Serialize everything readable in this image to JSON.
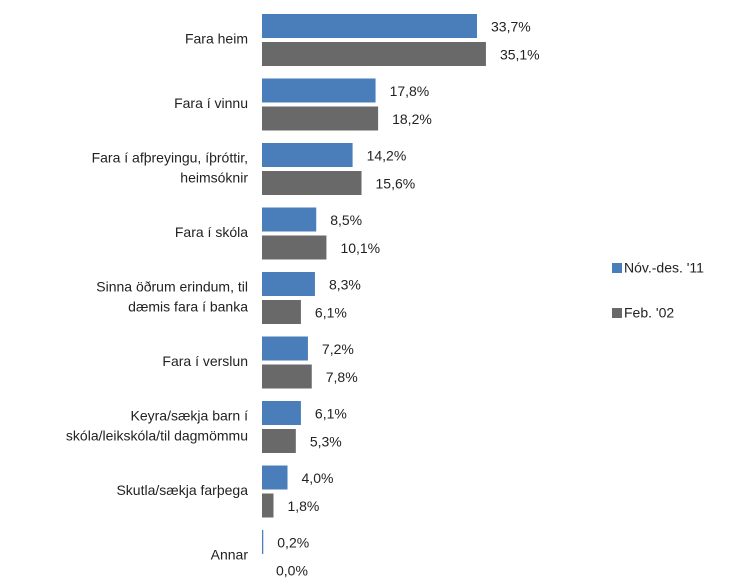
{
  "chart_data": {
    "type": "bar",
    "orientation": "horizontal",
    "categories": [
      [
        "Fara heim"
      ],
      [
        "Fara í vinnu"
      ],
      [
        "Fara í afþreyingu, íþróttir,",
        "heimsóknir"
      ],
      [
        "Fara í skóla"
      ],
      [
        "Sinna öðrum erindum, til",
        "dæmis fara í banka"
      ],
      [
        "Fara í verslun"
      ],
      [
        "Keyra/sækja barn í",
        "skóla/leikskóla/til dagmömmu"
      ],
      [
        "Skutla/sækja farþega"
      ],
      [
        "Annar"
      ]
    ],
    "series": [
      {
        "name": "Nóv.-des. '11",
        "color": "#4a7ebb",
        "values": [
          33.7,
          17.8,
          14.2,
          8.5,
          8.3,
          7.2,
          6.1,
          4.0,
          0.2
        ],
        "value_labels": [
          "33,7%",
          "17,8%",
          "14,2%",
          "8,5%",
          "8,3%",
          "7,2%",
          "6,1%",
          "4,0%",
          "0,2%"
        ]
      },
      {
        "name": "Feb. '02",
        "color": "#696969",
        "values": [
          35.1,
          18.2,
          15.6,
          10.1,
          6.1,
          7.8,
          5.3,
          1.8,
          0.0
        ],
        "value_labels": [
          "35,1%",
          "18,2%",
          "15,6%",
          "10,1%",
          "6,1%",
          "7,8%",
          "5,3%",
          "1,8%",
          "0,0%"
        ]
      }
    ],
    "legend": "right"
  }
}
